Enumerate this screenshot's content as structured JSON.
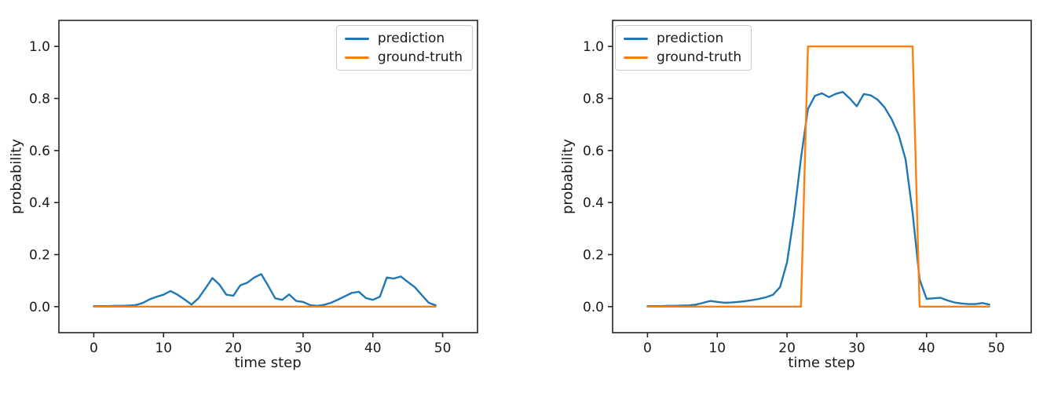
{
  "figure": {
    "background": "#ffffff",
    "text_color": "#1a1a1a",
    "axis_color": "#262626"
  },
  "colors": {
    "prediction": "#1f77b4",
    "ground_truth": "#ff7f0e",
    "legend_border": "#cccccc"
  },
  "chart_data": [
    {
      "type": "line",
      "position": "left",
      "xlabel": "time step",
      "ylabel": "probability",
      "xlim": [
        -5,
        55
      ],
      "ylim": [
        -0.1,
        1.1
      ],
      "xticks": [
        0,
        10,
        20,
        30,
        40,
        50
      ],
      "xtick_labels": [
        "0",
        "10",
        "20",
        "30",
        "40",
        "50"
      ],
      "yticks": [
        0.0,
        0.2,
        0.4,
        0.6,
        0.8,
        1.0
      ],
      "ytick_labels": [
        "0.0",
        "0.2",
        "0.4",
        "0.6",
        "0.8",
        "1.0"
      ],
      "grid": false,
      "legend_position": "top-right",
      "x": [
        0,
        1,
        2,
        3,
        4,
        5,
        6,
        7,
        8,
        9,
        10,
        11,
        12,
        13,
        14,
        15,
        16,
        17,
        18,
        19,
        20,
        21,
        22,
        23,
        24,
        25,
        26,
        27,
        28,
        29,
        30,
        31,
        32,
        33,
        34,
        35,
        36,
        37,
        38,
        39,
        40,
        41,
        42,
        43,
        44,
        45,
        46,
        47,
        48,
        49
      ],
      "series": [
        {
          "name": "prediction",
          "color": "#1f77b4",
          "values": [
            0.002,
            0.002,
            0.002,
            0.003,
            0.003,
            0.004,
            0.006,
            0.014,
            0.028,
            0.038,
            0.046,
            0.06,
            0.046,
            0.028,
            0.008,
            0.032,
            0.07,
            0.11,
            0.085,
            0.046,
            0.042,
            0.082,
            0.092,
            0.112,
            0.125,
            0.08,
            0.032,
            0.026,
            0.047,
            0.022,
            0.018,
            0.006,
            0.003,
            0.007,
            0.015,
            0.027,
            0.04,
            0.053,
            0.057,
            0.033,
            0.026,
            0.038,
            0.112,
            0.108,
            0.116,
            0.095,
            0.075,
            0.045,
            0.015,
            0.005
          ]
        },
        {
          "name": "ground-truth",
          "color": "#ff7f0e",
          "values": [
            0,
            0,
            0,
            0,
            0,
            0,
            0,
            0,
            0,
            0,
            0,
            0,
            0,
            0,
            0,
            0,
            0,
            0,
            0,
            0,
            0,
            0,
            0,
            0,
            0,
            0,
            0,
            0,
            0,
            0,
            0,
            0,
            0,
            0,
            0,
            0,
            0,
            0,
            0,
            0,
            0,
            0,
            0,
            0,
            0,
            0,
            0,
            0,
            0,
            0
          ]
        }
      ]
    },
    {
      "type": "line",
      "position": "right",
      "xlabel": "time step",
      "ylabel": "probability",
      "xlim": [
        -5,
        55
      ],
      "ylim": [
        -0.1,
        1.1
      ],
      "xticks": [
        0,
        10,
        20,
        30,
        40,
        50
      ],
      "xtick_labels": [
        "0",
        "10",
        "20",
        "30",
        "40",
        "50"
      ],
      "yticks": [
        0.0,
        0.2,
        0.4,
        0.6,
        0.8,
        1.0
      ],
      "ytick_labels": [
        "0.0",
        "0.2",
        "0.4",
        "0.6",
        "0.8",
        "1.0"
      ],
      "grid": false,
      "legend_position": "top-left",
      "x": [
        0,
        1,
        2,
        3,
        4,
        5,
        6,
        7,
        8,
        9,
        10,
        11,
        12,
        13,
        14,
        15,
        16,
        17,
        18,
        19,
        20,
        21,
        22,
        23,
        24,
        25,
        26,
        27,
        28,
        29,
        30,
        31,
        32,
        33,
        34,
        35,
        36,
        37,
        38,
        39,
        40,
        41,
        42,
        43,
        44,
        45,
        46,
        47,
        48,
        49
      ],
      "series": [
        {
          "name": "prediction",
          "color": "#1f77b4",
          "values": [
            0.002,
            0.002,
            0.002,
            0.003,
            0.003,
            0.004,
            0.005,
            0.008,
            0.015,
            0.022,
            0.018,
            0.015,
            0.016,
            0.018,
            0.021,
            0.025,
            0.03,
            0.036,
            0.046,
            0.075,
            0.17,
            0.35,
            0.57,
            0.76,
            0.81,
            0.82,
            0.805,
            0.818,
            0.825,
            0.8,
            0.77,
            0.817,
            0.812,
            0.795,
            0.765,
            0.72,
            0.66,
            0.565,
            0.36,
            0.105,
            0.03,
            0.032,
            0.034,
            0.024,
            0.016,
            0.012,
            0.01,
            0.01,
            0.014,
            0.008
          ]
        },
        {
          "name": "ground-truth",
          "color": "#ff7f0e",
          "values": [
            0,
            0,
            0,
            0,
            0,
            0,
            0,
            0,
            0,
            0,
            0,
            0,
            0,
            0,
            0,
            0,
            0,
            0,
            0,
            0,
            0,
            0,
            0,
            1,
            1,
            1,
            1,
            1,
            1,
            1,
            1,
            1,
            1,
            1,
            1,
            1,
            1,
            1,
            1,
            0,
            0,
            0,
            0,
            0,
            0,
            0,
            0,
            0,
            0,
            0
          ]
        }
      ]
    }
  ]
}
